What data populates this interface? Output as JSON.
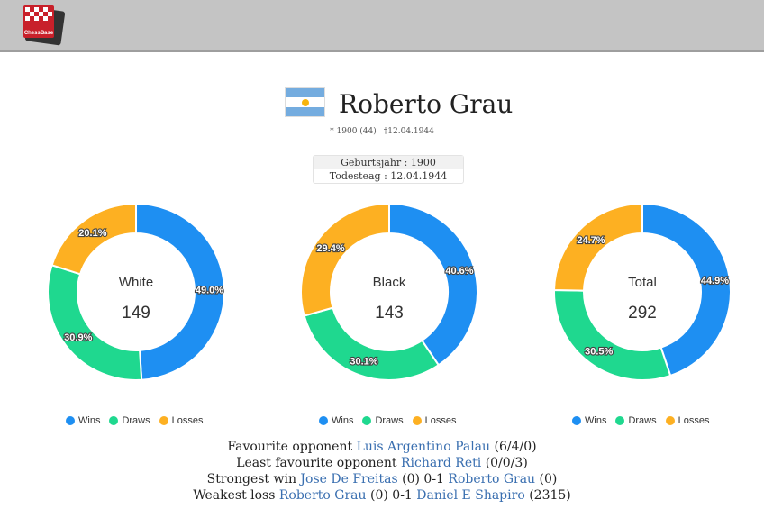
{
  "header": {
    "logo_text": "ChessBase"
  },
  "player": {
    "name": "Roberto Grau",
    "flag": "argentina-flag",
    "birth": "* 1900 (44)",
    "death": "†12.04.1944"
  },
  "info": {
    "birth_row": "Geburtsjahr : 1900",
    "death_row": "Todesteag : 12.04.1944"
  },
  "legend": {
    "wins": "Wins",
    "draws": "Draws",
    "losses": "Losses"
  },
  "colors": {
    "wins": "#1e8ff2",
    "draws": "#1fd88f",
    "losses": "#fdb022"
  },
  "chart_data": [
    {
      "type": "pie",
      "center_label": "White",
      "total": "149",
      "categories": [
        "Wins",
        "Draws",
        "Losses"
      ],
      "values": [
        49.0,
        30.9,
        20.1
      ],
      "labels": [
        "49.0%",
        "30.9%",
        "20.1%"
      ]
    },
    {
      "type": "pie",
      "center_label": "Black",
      "total": "143",
      "categories": [
        "Wins",
        "Draws",
        "Losses"
      ],
      "values": [
        40.6,
        30.1,
        29.4
      ],
      "labels": [
        "40.6%",
        "30.1%",
        "29.4%"
      ]
    },
    {
      "type": "pie",
      "center_label": "Total",
      "total": "292",
      "categories": [
        "Wins",
        "Draws",
        "Losses"
      ],
      "values": [
        44.9,
        30.5,
        24.7
      ],
      "labels": [
        "44.9%",
        "30.5%",
        "24.7%"
      ]
    }
  ],
  "stats": {
    "favourite": {
      "prefix": "Favourite opponent",
      "name": "Luis Argentino Palau",
      "score": "(6/4/0)"
    },
    "least_favourite": {
      "prefix": "Least favourite opponent",
      "name": "Richard Reti",
      "score": "(0/0/3)"
    },
    "strongest_win": {
      "prefix": "Strongest win",
      "white": "Jose De Freitas",
      "white_rating": "(0)",
      "result": "0-1",
      "black": "Roberto Grau",
      "black_rating": "(0)"
    },
    "weakest_loss": {
      "prefix": "Weakest loss",
      "white": "Roberto Grau",
      "white_rating": "(0)",
      "result": "0-1",
      "black": "Daniel E Shapiro",
      "black_rating": "(2315)"
    }
  }
}
